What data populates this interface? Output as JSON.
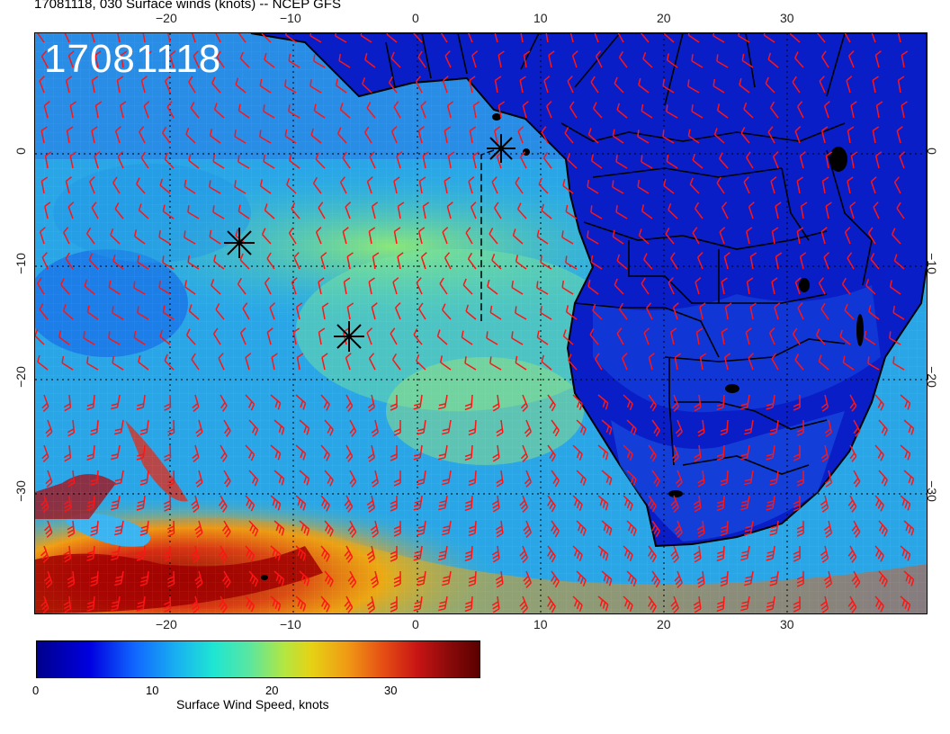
{
  "title": "17081118, 030 Surface winds (knots) -- NCEP GFS",
  "stamp": "17081118",
  "lon_ticks_top": [
    "−20",
    "−10",
    "0",
    "10",
    "20",
    "30"
  ],
  "lon_ticks_bottom": [
    "−20",
    "−10",
    "0",
    "10",
    "20",
    "30"
  ],
  "lat_ticks_left": [
    "0",
    "−10",
    "−20",
    "−30"
  ],
  "lat_ticks_right": [
    "0",
    "−10",
    "−20",
    "−30"
  ],
  "colorbar": {
    "label": "Surface Wind Speed, knots",
    "ticks": [
      "0",
      "10",
      "20",
      "30"
    ],
    "range": [
      0,
      37
    ]
  },
  "markers": [
    "storm-marker-1",
    "storm-marker-2",
    "storm-marker-3"
  ],
  "colors": {
    "barb": "#ff1414",
    "land_low": "#0a14b4",
    "ocean_mid": "#28b4e6",
    "jet_high": "#b40000"
  }
}
